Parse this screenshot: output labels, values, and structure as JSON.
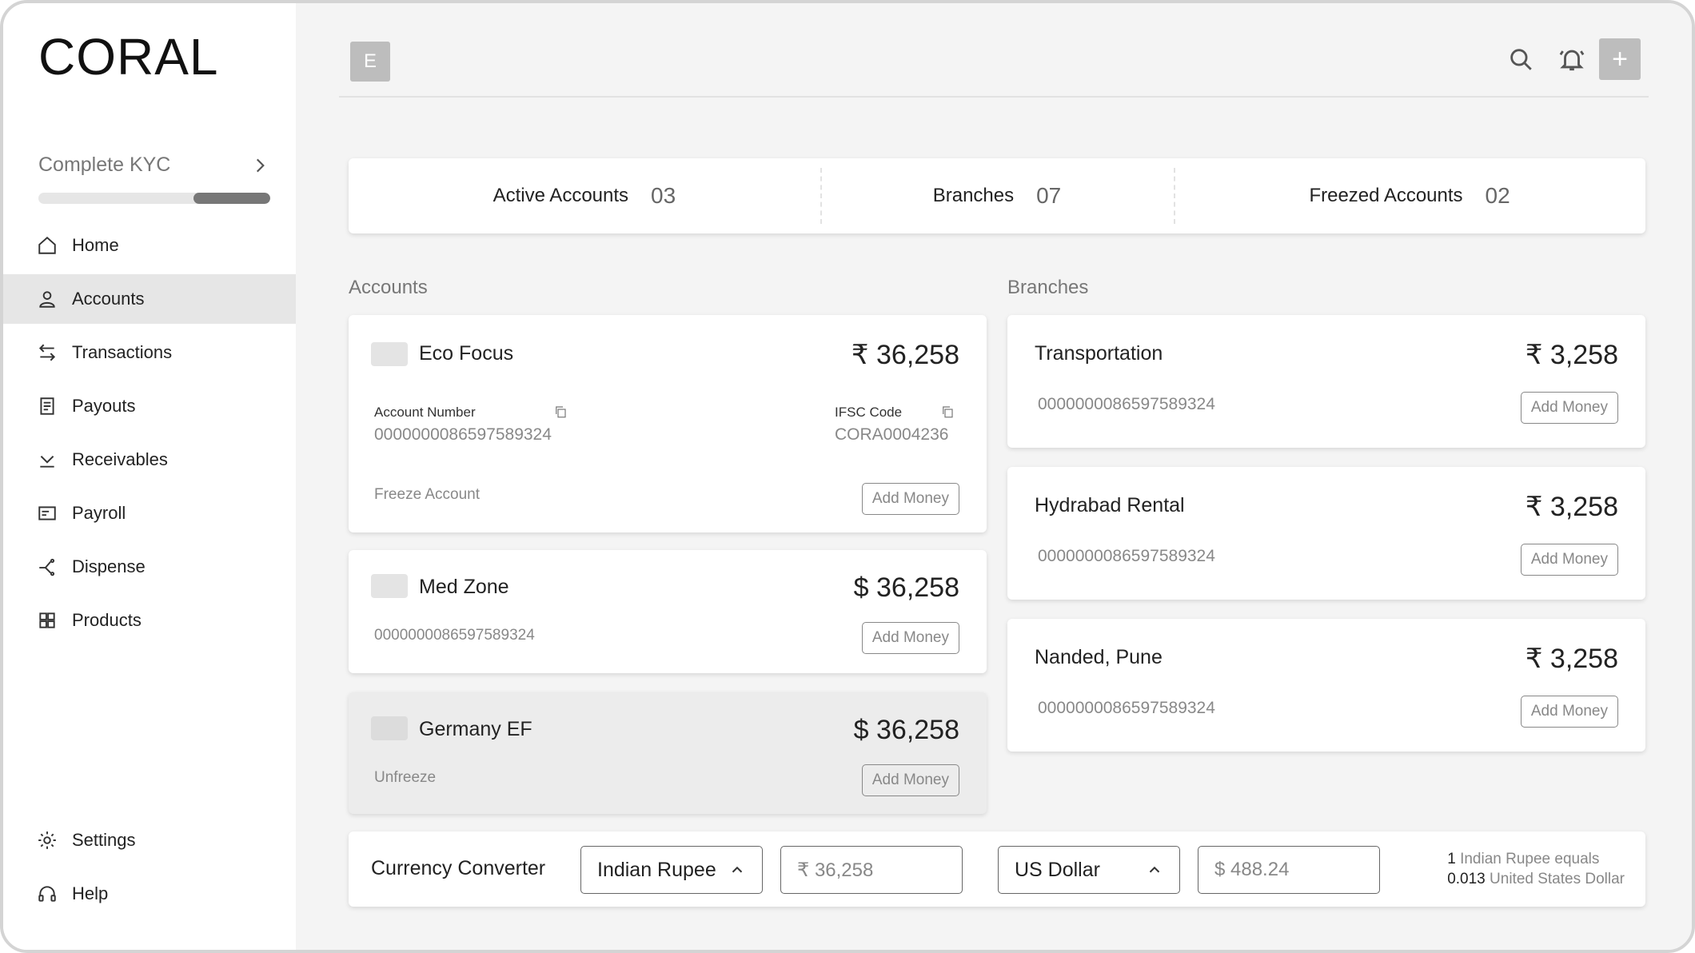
{
  "app": {
    "logo": "CORAL"
  },
  "sidebar": {
    "kyc": {
      "label": "Complete KYC",
      "progress": 0.33
    },
    "items": [
      {
        "label": "Home",
        "icon": "home-icon",
        "active": false
      },
      {
        "label": "Accounts",
        "icon": "user-icon",
        "active": true
      },
      {
        "label": "Transactions",
        "icon": "arrows-swap-icon",
        "active": false
      },
      {
        "label": "Payouts",
        "icon": "receipt-icon",
        "active": false
      },
      {
        "label": "Receivables",
        "icon": "download-icon",
        "active": false
      },
      {
        "label": "Payroll",
        "icon": "id-card-icon",
        "active": false
      },
      {
        "label": "Dispense",
        "icon": "share-branch-icon",
        "active": false
      },
      {
        "label": "Products",
        "icon": "grid-icon",
        "active": false
      }
    ],
    "bottom_items": [
      {
        "label": "Settings",
        "icon": "gear-icon"
      },
      {
        "label": "Help",
        "icon": "headset-icon"
      }
    ]
  },
  "header": {
    "avatar_initial": "E",
    "add_label": "+"
  },
  "stats": [
    {
      "label": "Active Accounts",
      "value": "03"
    },
    {
      "label": "Branches",
      "value": "07"
    },
    {
      "label": "Freezed Accounts",
      "value": "02"
    }
  ],
  "accounts": {
    "title": "Accounts",
    "items": [
      {
        "name": "Eco Focus",
        "amount": "₹ 36,258",
        "account_number_label": "Account Number",
        "account_number": "0000000086597589324",
        "ifsc_label": "IFSC Code",
        "ifsc": "CORA0004236",
        "action_label": "Freeze Account",
        "button_label": "Add Money"
      },
      {
        "name": "Med Zone",
        "amount": "$ 36,258",
        "account_number": "0000000086597589324",
        "button_label": "Add Money"
      },
      {
        "name": "Germany EF",
        "amount": "$ 36,258",
        "action_label": "Unfreeze",
        "button_label": "Add Money",
        "frozen": true
      }
    ]
  },
  "branches": {
    "title": "Branches",
    "items": [
      {
        "name": "Transportation",
        "amount": "₹ 3,258",
        "account_number": "0000000086597589324",
        "button_label": "Add Money"
      },
      {
        "name": "Hydrabad Rental",
        "amount": "₹ 3,258",
        "account_number": "0000000086597589324",
        "button_label": "Add Money"
      },
      {
        "name": "Nanded, Pune",
        "amount": "₹ 3,258",
        "account_number": "0000000086597589324",
        "button_label": "Add Money"
      }
    ]
  },
  "converter": {
    "title": "Currency Converter",
    "from_currency": "Indian Rupee",
    "from_amount": "₹ 36,258",
    "to_currency": "US Dollar",
    "to_amount": "$ 488.24",
    "rate_line1_value": "1",
    "rate_line1_text": "Indian Rupee equals",
    "rate_line2_value": "0.013",
    "rate_line2_text": "United States Dollar"
  }
}
